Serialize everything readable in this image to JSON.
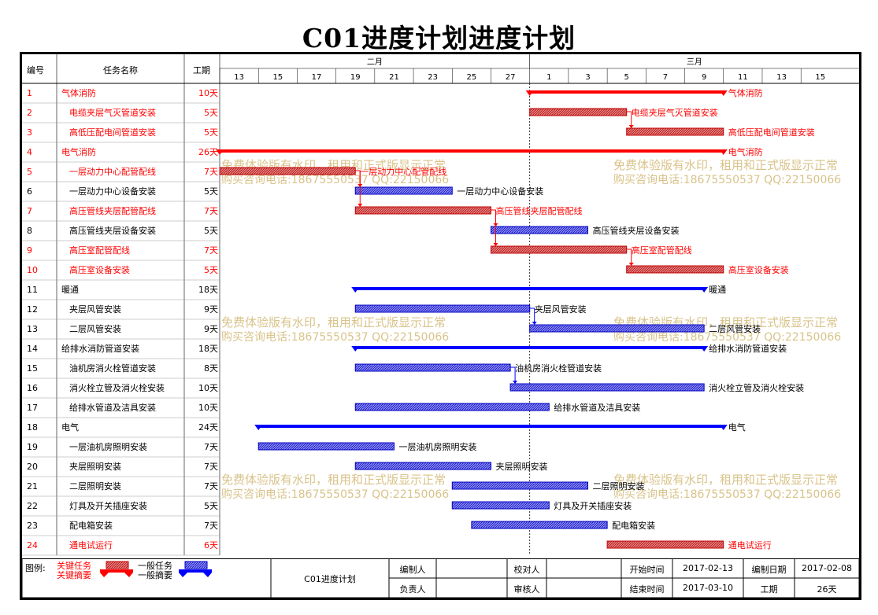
{
  "title": "C01进度计划进度计划",
  "columns": {
    "id": "编号",
    "name": "任务名称",
    "duration": "工期"
  },
  "months": [
    {
      "label": "二月"
    },
    {
      "label": "三月"
    }
  ],
  "day_ticks": [
    "13",
    "15",
    "17",
    "19",
    "21",
    "23",
    "25",
    "27",
    "1",
    "3",
    "5",
    "7",
    "9",
    "11",
    "13",
    "15"
  ],
  "colors": {
    "critical": "#ff0000",
    "normal": "#0000ff",
    "critical_bar_fill": "#e06060",
    "normal_bar_fill": "#6a6aff",
    "watermark": "#d9c38a"
  },
  "watermark": {
    "line1": "免费体验版有水印，租用和正式版显示正常",
    "line2": "购买咨询电话:18675550537 QQ:22150066"
  },
  "chart_data": {
    "type": "gantt",
    "title": "C01进度计划进度计划",
    "x_axis": {
      "start": "2017-02-13",
      "end": "2017-03-16",
      "unit": "day"
    },
    "today_line": "2017-03-01",
    "tasks": [
      {
        "id": "1",
        "name": "气体消防",
        "duration": "10天",
        "start": "2017-03-01",
        "end": "2017-03-11",
        "summary": true,
        "critical": true,
        "label": "气体消防"
      },
      {
        "id": "2",
        "name": "电缆夹层气灭管道安装",
        "duration": "5天",
        "start": "2017-03-01",
        "end": "2017-03-06",
        "summary": false,
        "critical": true,
        "label": "电缆夹层气灭管道安装"
      },
      {
        "id": "3",
        "name": "高低压配电间管道安装",
        "duration": "5天",
        "start": "2017-03-06",
        "end": "2017-03-11",
        "summary": false,
        "critical": true,
        "label": "高低压配电间管道安装"
      },
      {
        "id": "4",
        "name": "电气消防",
        "duration": "26天",
        "start": "2017-02-13",
        "end": "2017-03-11",
        "summary": true,
        "critical": true,
        "label": "电气消防"
      },
      {
        "id": "5",
        "name": "一层动力中心配管配线",
        "duration": "7天",
        "start": "2017-02-13",
        "end": "2017-02-20",
        "summary": false,
        "critical": true,
        "label": "一层动力中心配管配线"
      },
      {
        "id": "6",
        "name": "一层动力中心设备安装",
        "duration": "5天",
        "start": "2017-02-20",
        "end": "2017-02-25",
        "summary": false,
        "critical": false,
        "label": "一层动力中心设备安装"
      },
      {
        "id": "7",
        "name": "高压管线夹层配管配线",
        "duration": "7天",
        "start": "2017-02-20",
        "end": "2017-02-27",
        "summary": false,
        "critical": true,
        "label": "高压管线夹层配管配线"
      },
      {
        "id": "8",
        "name": "高压管线夹层设备安装",
        "duration": "5天",
        "start": "2017-02-27",
        "end": "2017-03-04",
        "summary": false,
        "critical": false,
        "label": "高压管线夹层设备安装"
      },
      {
        "id": "9",
        "name": "高压室配管配线",
        "duration": "7天",
        "start": "2017-02-27",
        "end": "2017-03-06",
        "summary": false,
        "critical": true,
        "label": "高压室配管配线"
      },
      {
        "id": "10",
        "name": "高压室设备安装",
        "duration": "5天",
        "start": "2017-03-06",
        "end": "2017-03-11",
        "summary": false,
        "critical": true,
        "label": "高压室设备安装"
      },
      {
        "id": "11",
        "name": "暖通",
        "duration": "18天",
        "start": "2017-02-20",
        "end": "2017-03-10",
        "summary": true,
        "critical": false,
        "label": "暖通"
      },
      {
        "id": "12",
        "name": "夹层风管安装",
        "duration": "9天",
        "start": "2017-02-20",
        "end": "2017-03-01",
        "summary": false,
        "critical": false,
        "label": "夹层风管安装"
      },
      {
        "id": "13",
        "name": "二层风管安装",
        "duration": "9天",
        "start": "2017-03-01",
        "end": "2017-03-10",
        "summary": false,
        "critical": false,
        "label": "二层风管安装"
      },
      {
        "id": "14",
        "name": "给排水消防管道安装",
        "duration": "18天",
        "start": "2017-02-20",
        "end": "2017-03-10",
        "summary": true,
        "critical": false,
        "label": "给排水消防管道安装"
      },
      {
        "id": "15",
        "name": "油机房消火栓管道安装",
        "duration": "8天",
        "start": "2017-02-20",
        "end": "2017-02-28",
        "summary": false,
        "critical": false,
        "label": "油机房消火栓管道安装"
      },
      {
        "id": "16",
        "name": "消火栓立管及消火栓安装",
        "duration": "10天",
        "start": "2017-02-28",
        "end": "2017-03-10",
        "summary": false,
        "critical": false,
        "label": "消火栓立管及消火栓安装"
      },
      {
        "id": "17",
        "name": "给排水管道及洁具安装",
        "duration": "10天",
        "start": "2017-02-20",
        "end": "2017-03-02",
        "summary": false,
        "critical": false,
        "label": "给排水管道及洁具安装"
      },
      {
        "id": "18",
        "name": "电气",
        "duration": "24天",
        "start": "2017-02-15",
        "end": "2017-03-11",
        "summary": true,
        "critical": false,
        "label": "电气"
      },
      {
        "id": "19",
        "name": "一层油机房照明安装",
        "duration": "7天",
        "start": "2017-02-15",
        "end": "2017-02-22",
        "summary": false,
        "critical": false,
        "label": "一层油机房照明安装"
      },
      {
        "id": "20",
        "name": "夹层照明安装",
        "duration": "7天",
        "start": "2017-02-20",
        "end": "2017-02-27",
        "summary": false,
        "critical": false,
        "label": "夹层照明安装"
      },
      {
        "id": "21",
        "name": "二层照明安装",
        "duration": "7天",
        "start": "2017-02-25",
        "end": "2017-03-04",
        "summary": false,
        "critical": false,
        "label": "二层照明安装"
      },
      {
        "id": "22",
        "name": "灯具及开关插座安装",
        "duration": "5天",
        "start": "2017-02-25",
        "end": "2017-03-02",
        "summary": false,
        "critical": false,
        "label": "灯具及开关插座安装"
      },
      {
        "id": "23",
        "name": "配电箱安装",
        "duration": "7天",
        "start": "2017-02-26",
        "end": "2017-03-05",
        "summary": false,
        "critical": false,
        "label": "配电箱安装"
      },
      {
        "id": "24",
        "name": "通电试运行",
        "duration": "6天",
        "start": "2017-03-05",
        "end": "2017-03-11",
        "summary": false,
        "critical": true,
        "label": "通电试运行"
      }
    ],
    "dependencies": [
      [
        2,
        3
      ],
      [
        5,
        6
      ],
      [
        5,
        7
      ],
      [
        7,
        8
      ],
      [
        7,
        9
      ],
      [
        9,
        10
      ],
      [
        12,
        13
      ],
      [
        15,
        16
      ]
    ]
  },
  "footer": {
    "legend_label": "图例:",
    "critical_task": "关键任务",
    "critical_summary": "关键摘要",
    "normal_task": "一般任务",
    "normal_summary": "一般摘要",
    "project_name": "C01进度计划",
    "editor_label": "编制人",
    "checker_label": "校对人",
    "owner_label": "负责人",
    "reviewer_label": "审核人",
    "start_label": "开始时间",
    "start_value": "2017-02-13",
    "end_label": "结束时间",
    "end_value": "2017-03-10",
    "made_date_label": "编制日期",
    "made_date_value": "2017-02-08",
    "period_label": "工期",
    "period_value": "26天"
  }
}
